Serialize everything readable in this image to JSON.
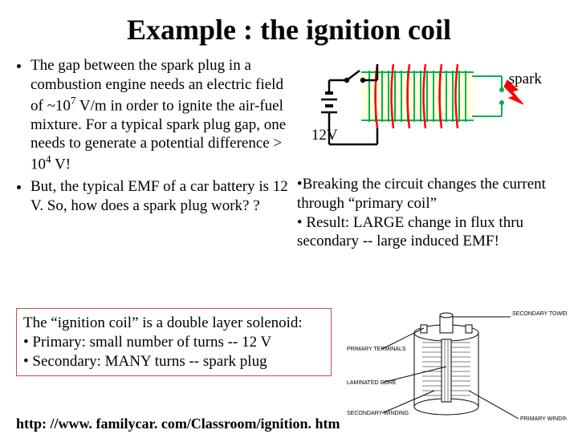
{
  "title": "Example : the ignition coil",
  "left_bullets": [
    "The gap between the spark plug in a combustion engine needs an electric field of ~10<sup>7</sup> V/m in order to ignite the air-fuel mixture. For a typical spark plug gap, one needs to generate a potential difference > 10<sup>4</sup> V!",
    "But, the typical EMF of a car battery is 12 V. So, how does a spark plug work? ?"
  ],
  "diagram": {
    "spark_label": "spark",
    "voltage_label": "12V",
    "battery_color": "#000000",
    "primary_color": "#ff0000",
    "secondary_color": "#00b050",
    "spark_color": "#ff0000",
    "core_fill": "#ffffe0"
  },
  "right_bullets": [
    "Breaking the circuit changes the current through “primary coil”",
    "Result: LARGE change in flux thru secondary -- large induced EMF!"
  ],
  "box": {
    "intro": "The “ignition coil” is a double layer solenoid:",
    "items": [
      "Primary: small number of turns -- 12 V",
      "Secondary: MANY turns -- spark plug"
    ]
  },
  "url": "http: //www. familycar. com/Classroom/ignition. htm",
  "cutaway": {
    "labels": {
      "secondary_tower": "SECONDARY TOWER",
      "primary_terminals": "PRIMARY TERMINALS",
      "laminated_core": "LAMINATED CORE",
      "secondary_winding": "SECONDARY WINDING",
      "primary_winding": "PRIMARY WINDING"
    },
    "stroke": "#000000",
    "fontsize": 7
  }
}
